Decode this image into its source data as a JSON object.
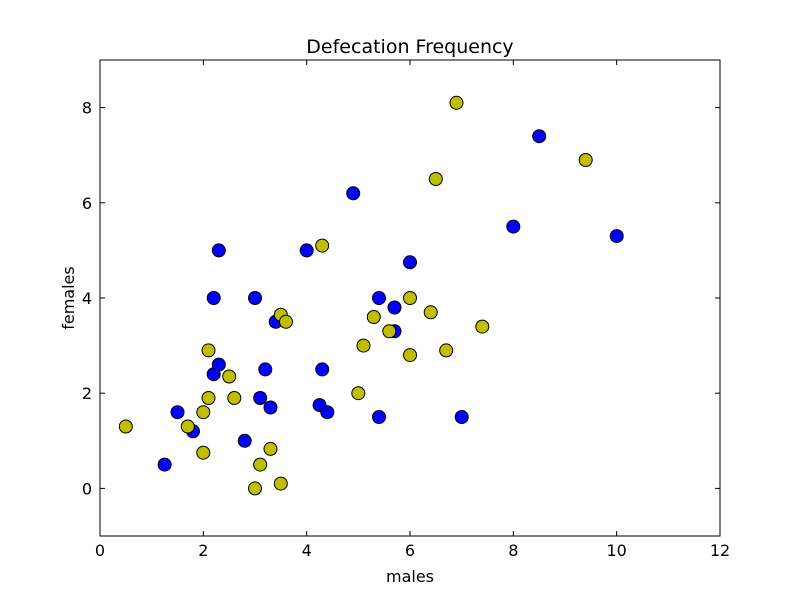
{
  "chart_data": {
    "type": "scatter",
    "title": "Defecation Frequency",
    "xlabel": "males",
    "ylabel": "females",
    "xlim": [
      0,
      12
    ],
    "ylim": [
      -1,
      9
    ],
    "xticks": [
      0,
      2,
      4,
      6,
      8,
      10,
      12
    ],
    "yticks": [
      0,
      2,
      4,
      6,
      8
    ],
    "grid": false,
    "series": [
      {
        "color": "#0000ff",
        "points": [
          [
            1.25,
            0.5
          ],
          [
            1.5,
            1.6
          ],
          [
            1.8,
            1.2
          ],
          [
            2.2,
            4.0
          ],
          [
            2.2,
            2.4
          ],
          [
            2.3,
            2.6
          ],
          [
            2.3,
            5.0
          ],
          [
            2.8,
            1.0
          ],
          [
            3.0,
            4.0
          ],
          [
            3.1,
            1.9
          ],
          [
            3.2,
            2.5
          ],
          [
            3.3,
            1.7
          ],
          [
            3.4,
            3.5
          ],
          [
            4.0,
            5.0
          ],
          [
            4.25,
            1.75
          ],
          [
            4.3,
            2.5
          ],
          [
            4.4,
            1.6
          ],
          [
            4.9,
            6.2
          ],
          [
            5.4,
            4.0
          ],
          [
            5.4,
            1.5
          ],
          [
            5.7,
            3.8
          ],
          [
            5.7,
            3.3
          ],
          [
            6.0,
            4.75
          ],
          [
            7.0,
            1.5
          ],
          [
            8.0,
            5.5
          ],
          [
            8.5,
            7.4
          ],
          [
            10.0,
            5.3
          ]
        ]
      },
      {
        "color": "#bfbf00",
        "points": [
          [
            0.5,
            1.3
          ],
          [
            1.7,
            1.3
          ],
          [
            2.0,
            1.6
          ],
          [
            2.0,
            0.75
          ],
          [
            2.1,
            2.9
          ],
          [
            2.1,
            1.9
          ],
          [
            2.5,
            2.35
          ],
          [
            2.6,
            1.9
          ],
          [
            3.0,
            0.0
          ],
          [
            3.1,
            0.5
          ],
          [
            3.3,
            0.83
          ],
          [
            3.5,
            0.1
          ],
          [
            3.5,
            3.65
          ],
          [
            3.6,
            3.5
          ],
          [
            4.3,
            5.1
          ],
          [
            5.0,
            2.0
          ],
          [
            5.1,
            3.0
          ],
          [
            5.3,
            3.6
          ],
          [
            5.6,
            3.3
          ],
          [
            6.0,
            4.0
          ],
          [
            6.0,
            2.8
          ],
          [
            6.4,
            3.7
          ],
          [
            6.5,
            6.5
          ],
          [
            6.7,
            2.9
          ],
          [
            6.9,
            8.1
          ],
          [
            7.4,
            3.4
          ],
          [
            9.4,
            6.9
          ]
        ]
      }
    ]
  }
}
